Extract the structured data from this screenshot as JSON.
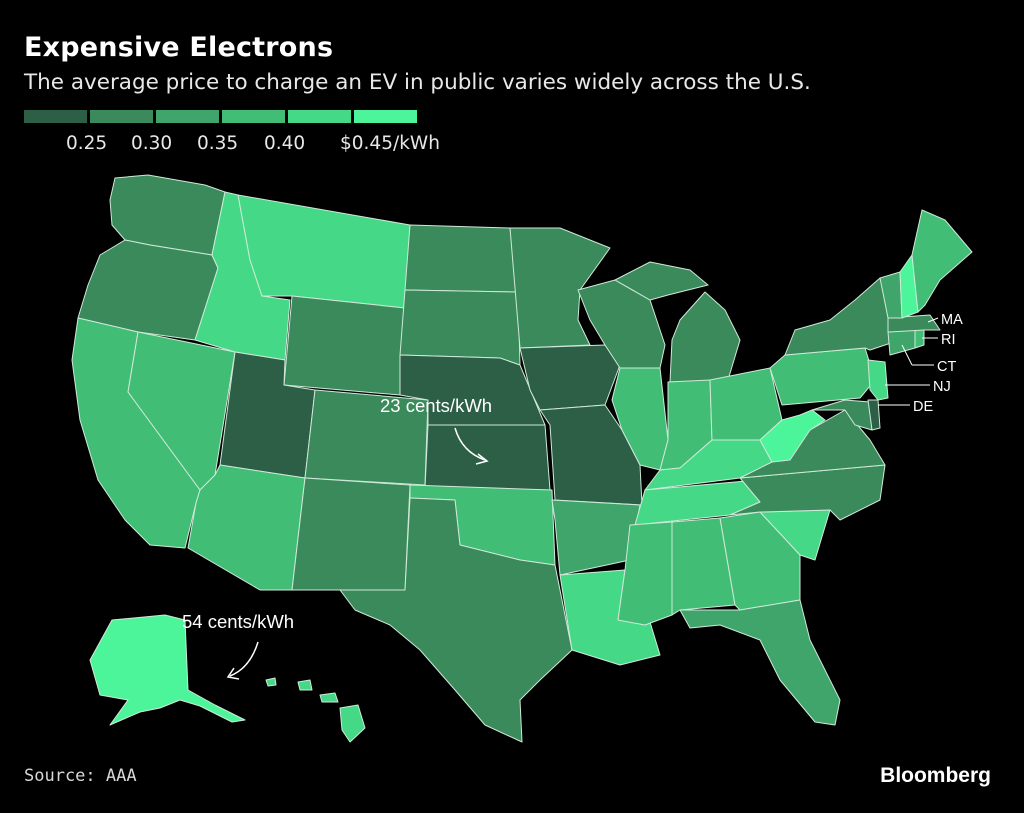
{
  "title": "Expensive Electrons",
  "subtitle": "The average price to charge an EV in public varies widely across the U.S.",
  "legend": {
    "labels": [
      "0.25",
      "0.30",
      "0.35",
      "0.40",
      "$0.45/kWh"
    ],
    "colors": [
      "#2c5f45",
      "#3a8a5c",
      "#3fa56a",
      "#41bd76",
      "#45d987",
      "#4cf59a"
    ]
  },
  "annotations": {
    "kansas": "23 cents/kWh",
    "alaska": "54 cents/kWh"
  },
  "state_labels": {
    "ma": "MA",
    "ri": "RI",
    "ct": "CT",
    "nj": "NJ",
    "de": "DE"
  },
  "source": "Source: AAA",
  "brand": "Bloomberg",
  "colors": {
    "background": "#000000",
    "border": "#cfe9d8"
  }
}
